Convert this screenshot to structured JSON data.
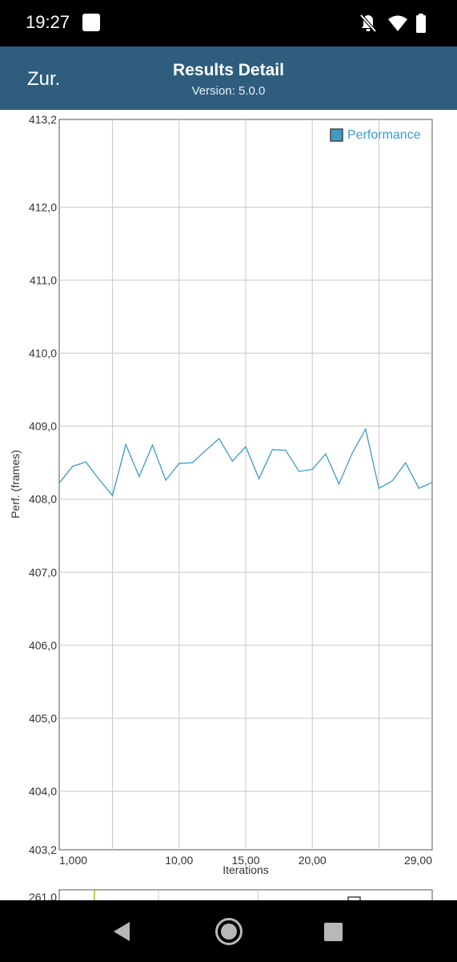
{
  "status_bar": {
    "time": "19:27"
  },
  "app_bar": {
    "back_label": "Zur.",
    "title": "Results Detail",
    "subtitle": "Version: 5.0.0"
  },
  "colors": {
    "app_bar": "#2f5d7e",
    "series": "#3e9bc4",
    "grid": "#c8c8c8"
  },
  "chart_data": [
    {
      "type": "line",
      "title": "",
      "xlabel": "Iterations",
      "ylabel": "Perf. (frames)",
      "xlim": [
        1,
        29
      ],
      "ylim": [
        403.2,
        413.2
      ],
      "y_ticks": [
        "413,2",
        "412,0",
        "411,0",
        "410,0",
        "409,0",
        "408,0",
        "407,0",
        "406,0",
        "405,0",
        "404,0",
        "403,2"
      ],
      "x_ticks": [
        "1,000",
        "10,00",
        "15,00",
        "20,00",
        "29,00"
      ],
      "grid": true,
      "legend": "top-right",
      "series": [
        {
          "name": "Performance",
          "x": [
            1,
            2,
            3,
            4,
            5,
            6,
            7,
            8,
            9,
            10,
            11,
            12,
            13,
            14,
            15,
            16,
            17,
            18,
            19,
            20,
            21,
            22,
            23,
            24,
            25,
            26,
            27,
            28,
            29
          ],
          "values": [
            408.22,
            408.45,
            408.51,
            408.27,
            408.05,
            408.75,
            408.31,
            408.74,
            408.26,
            408.49,
            408.5,
            408.67,
            408.83,
            408.52,
            408.72,
            408.28,
            408.68,
            408.67,
            408.38,
            408.41,
            408.62,
            408.21,
            408.63,
            408.96,
            408.15,
            408.25,
            408.5,
            408.15,
            408.23
          ]
        }
      ]
    },
    {
      "type": "line",
      "y_ticks": [
        "261,0"
      ],
      "legend": "top-right"
    }
  ]
}
